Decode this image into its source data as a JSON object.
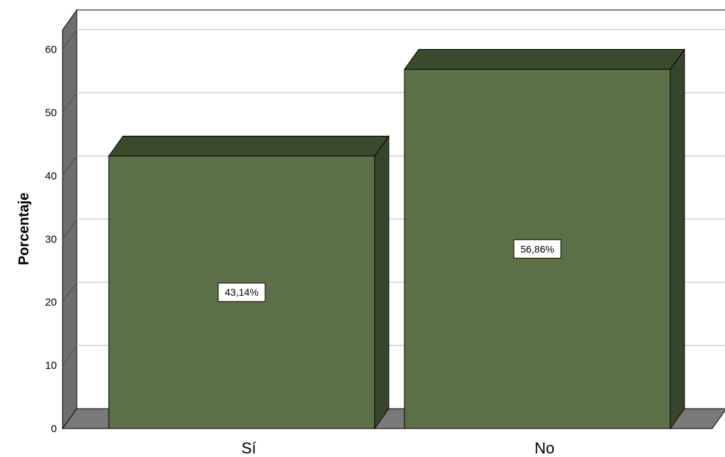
{
  "chart_data": {
    "type": "bar",
    "categories": [
      "Sí",
      "No"
    ],
    "values": [
      43.14,
      56.86
    ],
    "data_labels": [
      "43,14%",
      "56,86%"
    ],
    "title": "",
    "xlabel": "",
    "ylabel": "Porcentaje",
    "ylim": [
      0,
      60
    ],
    "yticks": [
      0,
      10,
      20,
      30,
      40,
      50,
      60
    ],
    "grid": true,
    "style": "3d",
    "colors": {
      "bar_front": "#5c7048",
      "bar_top": "#3a4a2d",
      "bar_side": "#37462b",
      "floor": "#7a7a7a",
      "wall_side": "#6e6e6e",
      "grid": "#cfcfcf"
    }
  }
}
